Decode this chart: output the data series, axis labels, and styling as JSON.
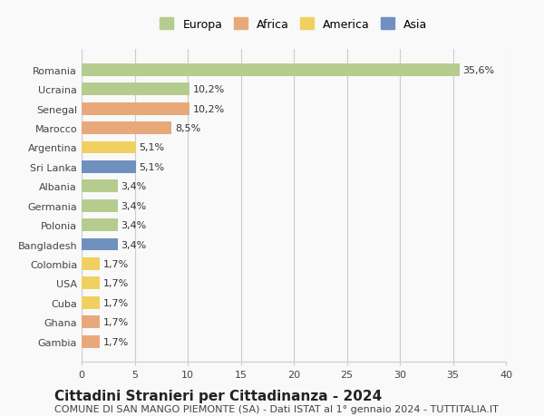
{
  "countries": [
    "Romania",
    "Ucraina",
    "Senegal",
    "Marocco",
    "Argentina",
    "Sri Lanka",
    "Albania",
    "Germania",
    "Polonia",
    "Bangladesh",
    "Colombia",
    "USA",
    "Cuba",
    "Ghana",
    "Gambia"
  ],
  "values": [
    35.6,
    10.2,
    10.2,
    8.5,
    5.1,
    5.1,
    3.4,
    3.4,
    3.4,
    3.4,
    1.7,
    1.7,
    1.7,
    1.7,
    1.7
  ],
  "percentages": [
    "35,6%",
    "10,2%",
    "10,2%",
    "8,5%",
    "5,1%",
    "5,1%",
    "3,4%",
    "3,4%",
    "3,4%",
    "3,4%",
    "1,7%",
    "1,7%",
    "1,7%",
    "1,7%",
    "1,7%"
  ],
  "continents": [
    "Europa",
    "Europa",
    "Africa",
    "Africa",
    "America",
    "Asia",
    "Europa",
    "Europa",
    "Europa",
    "Asia",
    "America",
    "America",
    "America",
    "Africa",
    "Africa"
  ],
  "colors": {
    "Europa": "#b5cc8e",
    "Africa": "#e8a97a",
    "America": "#f0d060",
    "Asia": "#7090c0"
  },
  "legend_colors": {
    "Europa": "#b5cc8e",
    "Africa": "#e8a97a",
    "America": "#f0d060",
    "Asia": "#7090c0"
  },
  "title": "Cittadini Stranieri per Cittadinanza - 2024",
  "subtitle": "COMUNE DI SAN MANGO PIEMONTE (SA) - Dati ISTAT al 1° gennaio 2024 - TUTTITALIA.IT",
  "xlim": [
    0,
    40
  ],
  "xticks": [
    0,
    5,
    10,
    15,
    20,
    25,
    30,
    35,
    40
  ],
  "background_color": "#f9f9f9",
  "grid_color": "#cccccc",
  "bar_height": 0.65,
  "title_fontsize": 11,
  "subtitle_fontsize": 8,
  "label_fontsize": 8,
  "tick_fontsize": 8,
  "legend_fontsize": 9
}
